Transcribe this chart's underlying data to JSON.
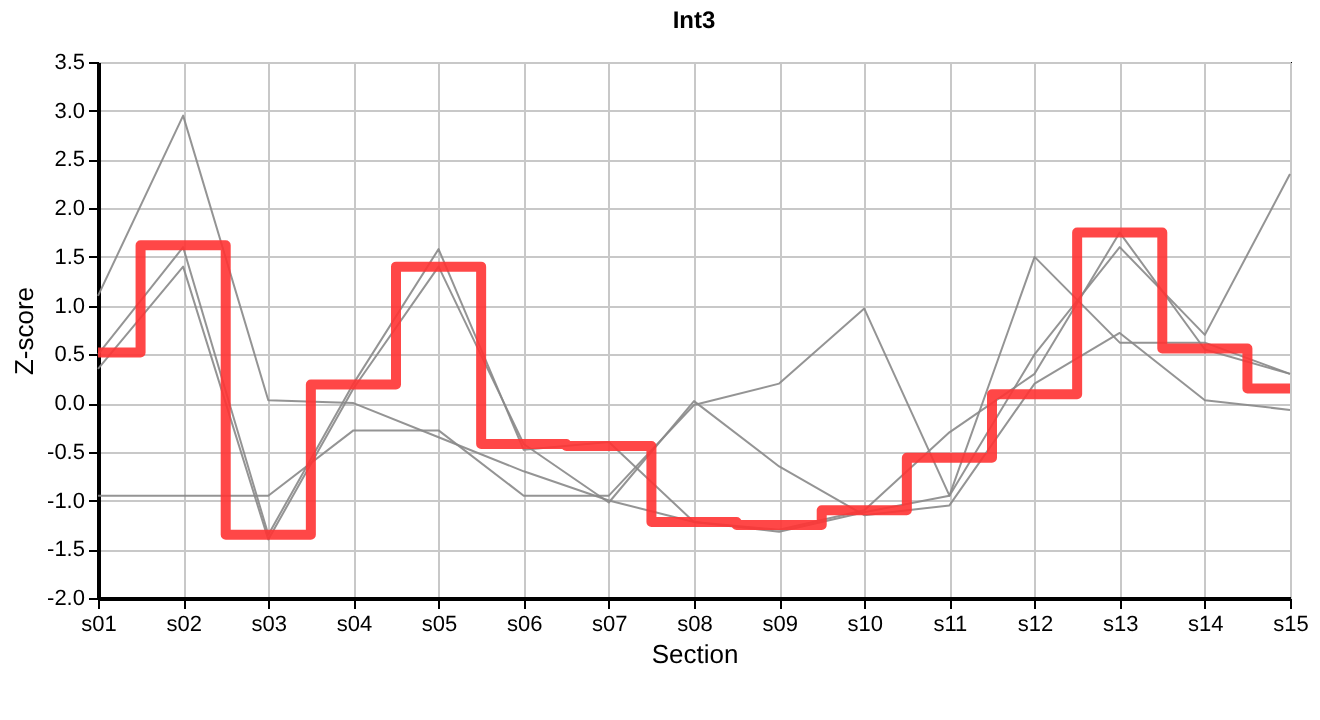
{
  "chart_data": {
    "type": "line",
    "title": "Int3",
    "xlabel": "Section",
    "ylabel": "Z-score",
    "categories": [
      "s01",
      "s02",
      "s03",
      "s04",
      "s05",
      "s06",
      "s07",
      "s08",
      "s09",
      "s10",
      "s11",
      "s12",
      "s13",
      "s14",
      "s15"
    ],
    "series": [
      {
        "color": "#888888",
        "values": [
          1.1,
          2.95,
          0.03,
          0.0,
          -0.35,
          -0.7,
          -1.0,
          -1.22,
          -1.32,
          -1.12,
          -0.95,
          1.5,
          0.62,
          0.62,
          0.3
        ]
      },
      {
        "color": "#888888",
        "values": [
          -0.95,
          -0.95,
          -0.95,
          -0.28,
          -0.28,
          -0.95,
          -0.95,
          -0.02,
          0.2,
          0.97,
          -0.95,
          0.5,
          1.6,
          0.7,
          2.35
        ]
      },
      {
        "color": "#888888",
        "values": [
          0.5,
          1.6,
          -1.35,
          0.2,
          1.58,
          -0.48,
          -0.4,
          -1.22,
          -1.3,
          -1.1,
          -0.3,
          0.3,
          1.75,
          0.55,
          0.3
        ]
      },
      {
        "color": "#888888",
        "values": [
          0.35,
          1.4,
          -1.4,
          0.15,
          1.4,
          -0.42,
          -1.02,
          0.02,
          -0.65,
          -1.15,
          -1.05,
          0.2,
          0.72,
          0.03,
          -0.07
        ]
      },
      {
        "type": "step",
        "color": "#ff3333",
        "values": [
          0.52,
          1.62,
          -1.35,
          0.19,
          1.4,
          -0.42,
          -0.44,
          -1.22,
          -1.25,
          -1.1,
          -0.56,
          0.09,
          1.75,
          0.56,
          0.15
        ]
      }
    ],
    "ylim": [
      -2.0,
      3.5
    ],
    "yticks": [
      {
        "value": -2,
        "label": "-2.0"
      },
      {
        "value": -1.5,
        "label": "-1.5"
      },
      {
        "value": -1,
        "label": "-1.0"
      },
      {
        "value": -0.5,
        "label": "-0.5"
      },
      {
        "value": 0,
        "label": "0.0"
      },
      {
        "value": 0.5,
        "label": "0.5"
      },
      {
        "value": 1,
        "label": "1.0"
      },
      {
        "value": 1.5,
        "label": "1.5"
      },
      {
        "value": 2,
        "label": "2.0"
      },
      {
        "value": 2.5,
        "label": "2.5"
      },
      {
        "value": 3,
        "label": "3.0"
      },
      {
        "value": 3.5,
        "label": "3.5"
      }
    ],
    "grid": true
  }
}
